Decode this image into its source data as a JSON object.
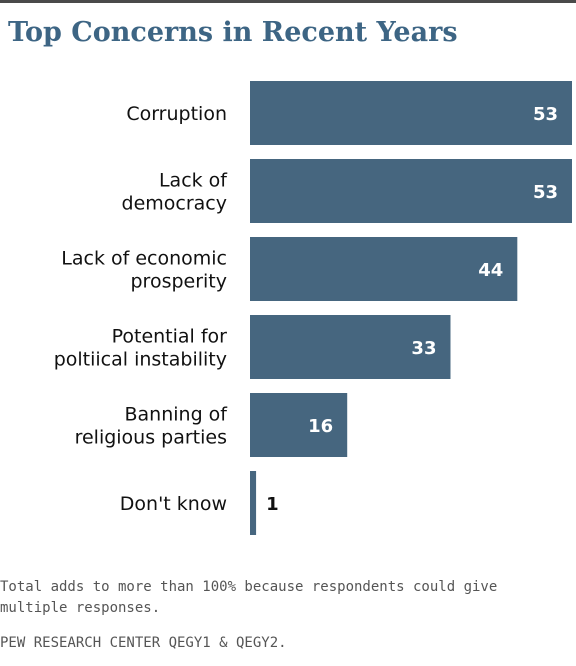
{
  "chart_data": {
    "type": "bar",
    "orientation": "horizontal",
    "title": "Top Concerns in Recent Years",
    "categories": [
      [
        "Corruption"
      ],
      [
        "Lack of",
        "democracy"
      ],
      [
        "Lack of economic",
        "prosperity"
      ],
      [
        "Potential for",
        "poltiical instability"
      ],
      [
        "Banning of",
        "religious parties"
      ],
      [
        "Don't know"
      ]
    ],
    "values": [
      53,
      53,
      44,
      33,
      16,
      1
    ],
    "xlim": [
      0,
      53
    ],
    "grid": false,
    "legend": "none",
    "bar_color": "#46667f",
    "inside_label_color": "#ffffff",
    "outside_label_color": "#111111"
  },
  "title_color": "#3d6584",
  "footnote": "Total adds to more than 100% because respondents could give multiple responses.",
  "source": "PEW RESEARCH CENTER QEGY1 & QEGY2."
}
